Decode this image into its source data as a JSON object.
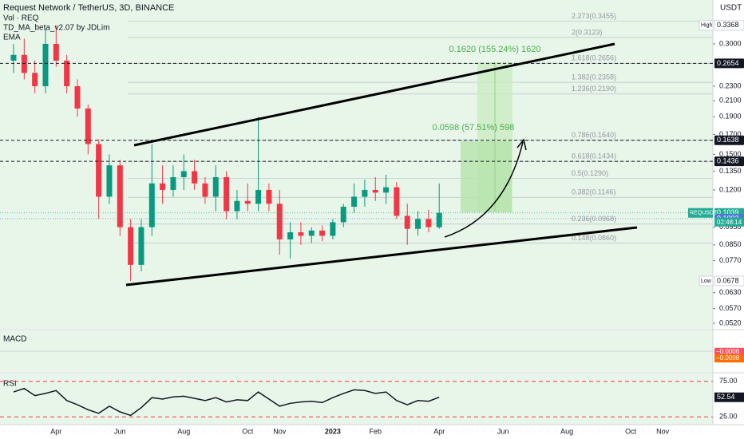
{
  "header": {
    "title": "Request Network / TetherUS, 3D, BINANCE",
    "volume": "Vol · REQ",
    "indicator": "TD_MA_beta_v2.07 by JDLim",
    "ema": "EMA"
  },
  "chart_data": [
    {
      "type": "candlestick",
      "log_scale": true,
      "grid": false,
      "axis_unit": "USDT",
      "symbol": "REQUSDT",
      "countdown": "02:48:14",
      "up_color": "#089981",
      "down_color": "#f23645",
      "categories": [
        null,
        null,
        null,
        null,
        "Apr",
        null,
        null,
        null,
        null,
        null,
        "Jun",
        null,
        null,
        null,
        null,
        null,
        "Aug",
        null,
        null,
        null,
        null,
        null,
        "Oct",
        null,
        null,
        "Nov",
        null,
        null,
        null,
        null,
        "2023",
        null,
        null,
        null,
        "Feb",
        null,
        null,
        null,
        null,
        null,
        "Apr",
        null,
        null,
        null,
        null,
        null,
        "Jun",
        null,
        null,
        null,
        null,
        null,
        "Aug",
        null,
        null,
        null,
        null,
        null,
        "Oct",
        null,
        null,
        "Nov",
        null,
        null
      ],
      "open": [
        0.27,
        0.28,
        0.25,
        0.23,
        0.3,
        0.27,
        0.23,
        0.2,
        0.16,
        0.115,
        0.14,
        0.095,
        0.075,
        0.095,
        0.125,
        0.12,
        0.13,
        0.135,
        0.125,
        0.115,
        0.13,
        0.105,
        0.112,
        0.11,
        0.12,
        0.11,
        0.088,
        0.092,
        0.09,
        0.093,
        0.09,
        0.098,
        0.108,
        0.115,
        0.12,
        0.118,
        0.122,
        0.102,
        0.094,
        0.1,
        0.095,
        null,
        null,
        null,
        null,
        null,
        null,
        null,
        null,
        null,
        null,
        null,
        null,
        null,
        null,
        null,
        null,
        null,
        null,
        null,
        null,
        null,
        null,
        null
      ],
      "high": [
        0.3,
        0.31,
        0.27,
        0.33,
        0.3368,
        0.28,
        0.24,
        0.205,
        0.165,
        0.15,
        0.145,
        0.1,
        0.1,
        0.16,
        0.14,
        0.14,
        0.15,
        0.145,
        0.13,
        0.14,
        0.135,
        0.12,
        0.125,
        0.19,
        0.125,
        0.12,
        0.098,
        0.098,
        0.095,
        0.096,
        0.1,
        0.11,
        0.125,
        0.128,
        0.13,
        0.132,
        0.126,
        0.11,
        0.105,
        0.106,
        0.125,
        null,
        null,
        null,
        null,
        null,
        null,
        null,
        null,
        null,
        null,
        null,
        null,
        null,
        null,
        null,
        null,
        null,
        null,
        null,
        null,
        null,
        null,
        null
      ],
      "low": [
        0.25,
        0.24,
        0.22,
        0.22,
        0.26,
        0.22,
        0.19,
        0.15,
        0.1,
        0.11,
        0.09,
        0.0678,
        0.072,
        0.09,
        0.11,
        0.115,
        0.12,
        0.12,
        0.11,
        0.105,
        0.1,
        0.1,
        0.105,
        0.105,
        0.105,
        0.08,
        0.078,
        0.085,
        0.086,
        0.087,
        0.088,
        0.095,
        0.104,
        0.108,
        0.112,
        0.11,
        0.1,
        0.085,
        0.09,
        0.092,
        0.094,
        null,
        null,
        null,
        null,
        null,
        null,
        null,
        null,
        null,
        null,
        null,
        null,
        null,
        null,
        null,
        null,
        null,
        null,
        null,
        null,
        null,
        null,
        null
      ],
      "close": [
        0.28,
        0.25,
        0.23,
        0.3,
        0.27,
        0.23,
        0.2,
        0.16,
        0.115,
        0.14,
        0.095,
        0.075,
        0.095,
        0.125,
        0.12,
        0.13,
        0.135,
        0.125,
        0.115,
        0.13,
        0.105,
        0.112,
        0.11,
        0.12,
        0.11,
        0.088,
        0.092,
        0.09,
        0.093,
        0.09,
        0.098,
        0.108,
        0.115,
        0.12,
        0.118,
        0.122,
        0.102,
        0.094,
        0.1,
        0.095,
        0.1039,
        null,
        null,
        null,
        null,
        null,
        null,
        null,
        null,
        null,
        null,
        null,
        null,
        null,
        null,
        null,
        null,
        null,
        null,
        null,
        null,
        null,
        null,
        null
      ],
      "ylim": [
        0.0502,
        0.395
      ],
      "yticks": [
        {
          "value": 0.3,
          "label": "0.3000"
        },
        {
          "value": 0.23,
          "label": "0.2300"
        },
        {
          "value": 0.21,
          "label": "0.2100"
        },
        {
          "value": 0.19,
          "label": "0.1900"
        },
        {
          "value": 0.17,
          "label": "0.1700"
        },
        {
          "value": 0.15,
          "label": "0.1500"
        },
        {
          "value": 0.135,
          "label": "0.1350"
        },
        {
          "value": 0.12,
          "label": "0.1200"
        },
        {
          "value": 0.095,
          "label": "0.0950"
        },
        {
          "value": 0.085,
          "label": "0.0850"
        },
        {
          "value": 0.077,
          "label": "0.0770"
        },
        {
          "value": 0.063,
          "label": "0.0630"
        },
        {
          "value": 0.057,
          "label": "0.0570"
        },
        {
          "value": 0.052,
          "label": "0.0520"
        }
      ],
      "markers": [
        {
          "value": 0.2654,
          "color": "#131722",
          "dashed": true
        },
        {
          "value": 0.1638,
          "color": "#131722",
          "dashed": true
        },
        {
          "value": 0.1436,
          "color": "#131722",
          "dashed": true
        },
        {
          "value": 0.1039,
          "color": "#22ab94",
          "dashed": false
        },
        {
          "value": 0.1002,
          "color": "#4a7bd0",
          "dashed": false
        }
      ],
      "high_label": "High",
      "high_value": 0.3368,
      "low_label": "Low",
      "low_value": 0.0678,
      "fib_levels": [
        {
          "value": 0.3455,
          "label": "2.273(0.3455)"
        },
        {
          "value": 0.3123,
          "label": "2(0.3123)"
        },
        {
          "value": 0.2656,
          "label": "1.618(0.2656)"
        },
        {
          "value": 0.2358,
          "label": "1.382(0.2358)"
        },
        {
          "value": 0.219,
          "label": "1.236(0.2190)"
        },
        {
          "value": 0.164,
          "label": "0.786(0.1640)"
        },
        {
          "value": 0.1434,
          "label": "0.618(0.1434)"
        },
        {
          "value": 0.129,
          "label": "0.5(0.1290)"
        },
        {
          "value": 0.1146,
          "label": "0.382(0.1146)"
        },
        {
          "value": 0.0968,
          "label": "0.236(0.0968)"
        },
        {
          "value": 0.086,
          "label": "0.148(0.0860)"
        }
      ],
      "annotations": [
        "0.1620 (155.24%) 1620",
        "0.0598 (57.51%) 598"
      ]
    },
    {
      "type": "macd",
      "title": "MACD",
      "ylim": [
        -0.02,
        0.02
      ],
      "values": [
        -0.0006,
        -0.0008
      ],
      "value_labels": [
        "−0.0006",
        "−0.0008"
      ],
      "colors": [
        "#f7525f",
        "#ff6d00"
      ]
    },
    {
      "type": "line",
      "title": "RSI",
      "color": "#131722",
      "ylim": [
        14,
        86
      ],
      "yticks": [
        {
          "value": 75,
          "label": "75.00"
        },
        {
          "value": 25,
          "label": "25.00"
        }
      ],
      "values": [
        60,
        65,
        55,
        58,
        62,
        48,
        42,
        35,
        30,
        40,
        32,
        27,
        38,
        52,
        50,
        53,
        54,
        51,
        48,
        52,
        46,
        49,
        48,
        60,
        50,
        40,
        44,
        46,
        47,
        45,
        52,
        58,
        63,
        62,
        58,
        60,
        48,
        42,
        48,
        47,
        52.54,
        null,
        null,
        null,
        null,
        null,
        null,
        null,
        null,
        null,
        null,
        null,
        null,
        null,
        null,
        null,
        null,
        null,
        null,
        null,
        null,
        null,
        null,
        null
      ]
    }
  ]
}
